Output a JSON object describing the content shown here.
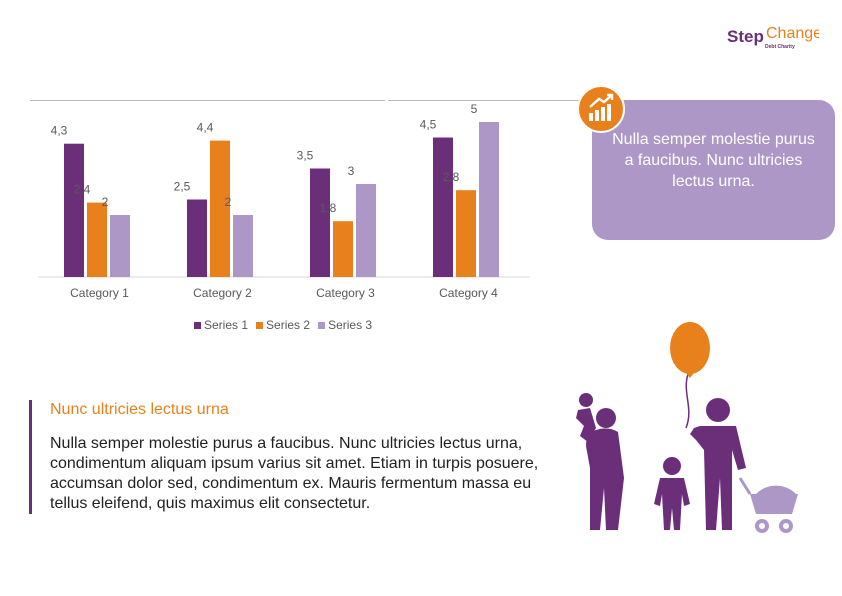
{
  "logo": {
    "brand": "StepChange",
    "tagline": "Debt Charity"
  },
  "chart_data": {
    "type": "bar",
    "categories": [
      "Category 1",
      "Category 2",
      "Category 3",
      "Category 4"
    ],
    "series": [
      {
        "name": "Series 1",
        "values": [
          4.3,
          2.5,
          3.5,
          4.5
        ],
        "labels": [
          "4,3",
          "2,5",
          "3,5",
          "4,5"
        ],
        "color": "#6b2f79"
      },
      {
        "name": "Series 2",
        "values": [
          2.4,
          4.4,
          1.8,
          2.8
        ],
        "labels": [
          "2,4",
          "4,4",
          "1,8",
          "2,8"
        ],
        "color": "#e8811c"
      },
      {
        "name": "Series 3",
        "values": [
          2,
          2,
          3,
          5
        ],
        "labels": [
          "2",
          "2",
          "3",
          "5"
        ],
        "color": "#ad97c7"
      }
    ],
    "legend": "bottom",
    "grid": false
  },
  "callout": {
    "text": "Nulla semper molestie purus a faucibus. Nunc ultricies lectus urna."
  },
  "content": {
    "heading": "Nunc ultricies lectus urna",
    "body": "Nulla semper molestie purus a faucibus. Nunc ultricies lectus urna, condimentum aliquam ipsum varius sit amet. Etiam in turpis posuere, accumsan dolor sed, condimentum ex. Mauris fermentum massa eu tellus eleifend, quis maximus elit consectetur."
  },
  "colors": {
    "purple": "#6b2f79",
    "orange": "#e8811c",
    "lavender": "#ad97c7"
  }
}
